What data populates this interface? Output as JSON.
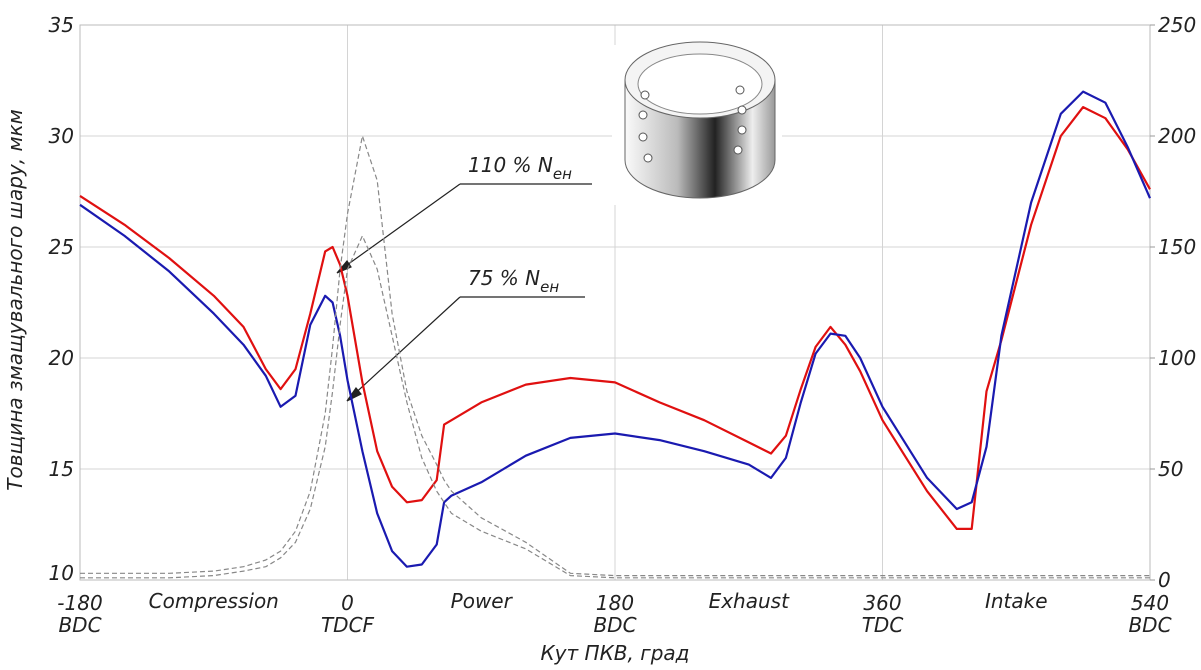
{
  "chart_data": {
    "type": "line",
    "y_label": "Товщина змащувального шару, мкм",
    "x_label": "Кут ПКВ, град",
    "x": [
      -180,
      -150,
      -120,
      -90,
      -70,
      -55,
      -45,
      -35,
      -25,
      -15,
      -10,
      -5,
      0,
      10,
      20,
      30,
      40,
      50,
      60,
      65,
      70,
      90,
      120,
      150,
      180,
      210,
      240,
      270,
      285,
      295,
      305,
      315,
      325,
      335,
      345,
      360,
      390,
      410,
      420,
      430,
      440,
      460,
      480,
      495,
      510,
      525,
      540
    ],
    "xlim": [
      -180,
      540
    ],
    "xticks": [
      -180,
      0,
      180,
      360,
      540
    ],
    "xtick_sublabels": [
      "BDC",
      "TDCF",
      "BDC",
      "TDC",
      "BDC"
    ],
    "ylim": [
      10,
      35
    ],
    "yticks": [
      10,
      15,
      20,
      25,
      30,
      35
    ],
    "y2lim": [
      0,
      250
    ],
    "y2ticks": [
      0,
      50,
      100,
      150,
      200,
      250
    ],
    "grid": true,
    "annotations": [
      "Compression",
      "Power",
      "Exhaust",
      "Intake"
    ],
    "series": [
      {
        "name": "110 % N",
        "name_sub": "ен",
        "color": "#e01010",
        "line_style": "solid",
        "values": [
          27.3,
          26.0,
          24.5,
          22.8,
          21.4,
          19.5,
          18.6,
          19.5,
          22.0,
          24.8,
          25.0,
          24.2,
          22.8,
          18.9,
          15.8,
          14.2,
          13.5,
          13.6,
          14.5,
          17.0,
          17.2,
          18.0,
          18.8,
          19.1,
          18.9,
          18.0,
          17.2,
          16.2,
          15.7,
          16.5,
          18.6,
          20.5,
          21.4,
          20.6,
          19.4,
          17.2,
          14.0,
          12.3,
          12.3,
          18.5,
          20.8,
          26.0,
          30.0,
          31.3,
          30.8,
          29.4,
          27.6
        ]
      },
      {
        "name": "75 % N",
        "name_sub": "ен",
        "color": "#1a1ab0",
        "line_style": "solid",
        "values": [
          26.9,
          25.5,
          23.9,
          22.0,
          20.6,
          19.2,
          17.8,
          18.3,
          21.5,
          22.8,
          22.5,
          21.0,
          19.0,
          15.8,
          13.0,
          11.3,
          10.6,
          10.7,
          11.6,
          13.5,
          13.8,
          14.4,
          15.6,
          16.4,
          16.6,
          16.3,
          15.8,
          15.2,
          14.6,
          15.5,
          18.0,
          20.2,
          21.1,
          21.0,
          20.0,
          17.8,
          14.6,
          13.2,
          13.5,
          16.0,
          21.0,
          27.0,
          31.0,
          32.0,
          31.5,
          29.5,
          27.2
        ]
      },
      {
        "color": "#888888",
        "line_style": "dashed",
        "axis": "y2",
        "values": [
          3,
          3,
          3,
          4,
          6,
          9,
          13,
          22,
          40,
          75,
          105,
          140,
          165,
          200,
          180,
          120,
          85,
          65,
          52,
          45,
          40,
          28,
          17,
          3,
          2,
          2,
          2,
          2,
          2,
          2,
          2,
          2,
          2,
          2,
          2,
          2,
          2,
          2,
          2,
          2,
          2,
          2,
          2,
          2,
          2,
          2,
          2
        ]
      },
      {
        "color": "#888888",
        "line_style": "dashed",
        "axis": "y2",
        "values": [
          1,
          1,
          1,
          2,
          4,
          6,
          10,
          17,
          32,
          60,
          85,
          115,
          140,
          155,
          140,
          110,
          80,
          55,
          40,
          35,
          30,
          22,
          14,
          2,
          1,
          1,
          1,
          1,
          1,
          1,
          1,
          1,
          1,
          1,
          1,
          1,
          1,
          1,
          1,
          1,
          1,
          1,
          1,
          1,
          1,
          1,
          1
        ]
      }
    ]
  }
}
